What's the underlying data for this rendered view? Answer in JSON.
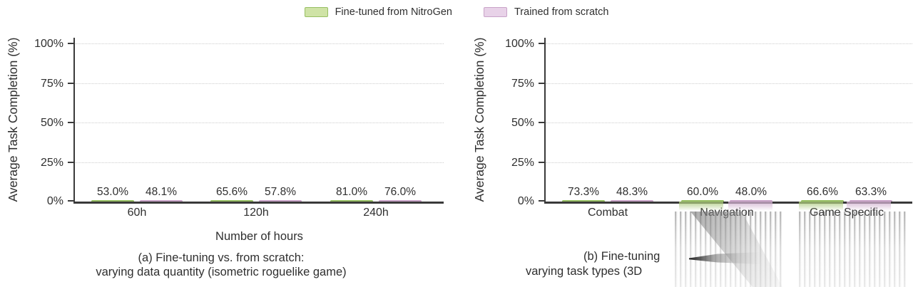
{
  "legend": {
    "items": [
      {
        "label": "Fine-tuned from NitroGen",
        "fill": "#cfe3a6",
        "border": "#97bf63"
      },
      {
        "label": "Trained from scratch",
        "fill": "#e8d2e8",
        "border": "#c9a3c8"
      }
    ]
  },
  "colors": {
    "green_fill": "#cfe3a6",
    "green_border": "#97bf63",
    "pink_fill": "#e8d2e8",
    "pink_border": "#c9a3c8",
    "axis": "#3a3a3a",
    "grid": "#cdcdcd",
    "text": "#2f2f2f"
  },
  "charts": [
    {
      "ylabel": "Average Task Completion (%)",
      "yticks": [
        "100%",
        "75%",
        "50%",
        "25%",
        "0%"
      ],
      "xlabel": "Number of hours",
      "caption": {
        "line1": "(a) Fine-tuning vs. from scratch:",
        "line2": "varying data quantity (isometric roguelike game)"
      },
      "groups": [
        {
          "category": "60h",
          "green": {
            "label": "53.0%",
            "value": 53.0
          },
          "pink": {
            "label": "48.1%",
            "value": 48.1
          }
        },
        {
          "category": "120h",
          "green": {
            "label": "65.6%",
            "value": 65.6
          },
          "pink": {
            "label": "57.8%",
            "value": 57.8
          }
        },
        {
          "category": "240h",
          "green": {
            "label": "81.0%",
            "value": 81.0
          },
          "pink": {
            "label": "76.0%",
            "value": 76.0
          }
        }
      ]
    },
    {
      "ylabel": "Average Task Completion (%)",
      "yticks": [
        "100%",
        "75%",
        "50%",
        "25%",
        "0%"
      ],
      "caption": {
        "line1": "(b) Fine-tuning",
        "line2": "varying task types (3D"
      },
      "groups": [
        {
          "category": "Combat",
          "green": {
            "label": "73.3%",
            "value": 73.3
          },
          "pink": {
            "label": "48.3%",
            "value": 48.3
          }
        },
        {
          "category": "Navigation",
          "green": {
            "label": "60.0%",
            "value": 60.0
          },
          "pink": {
            "label": "48.0%",
            "value": 48.0
          }
        },
        {
          "category": "Game Specific",
          "green": {
            "label": "66.6%",
            "value": 66.6
          },
          "pink": {
            "label": "63.3%",
            "value": 63.3
          }
        }
      ]
    }
  ],
  "chart_data": [
    {
      "type": "bar",
      "title": "(a) Fine-tuning vs. from scratch: varying data quantity (isometric roguelike game)",
      "xlabel": "Number of hours",
      "ylabel": "Average Task Completion (%)",
      "ylim": [
        0,
        100
      ],
      "ytick_values": [
        0,
        25,
        50,
        75,
        100
      ],
      "grid": "horizontal-dotted",
      "legend_position": "top-center",
      "categories": [
        "60h",
        "120h",
        "240h"
      ],
      "series": [
        {
          "name": "Fine-tuned from NitroGen",
          "color": "#cfe3a6",
          "values": [
            53.0,
            65.6,
            81.0
          ],
          "labels": [
            "53.0%",
            "65.6%",
            "81.0%"
          ]
        },
        {
          "name": "Trained from scratch",
          "color": "#e8d2e8",
          "values": [
            48.1,
            57.8,
            76.0
          ],
          "labels": [
            "48.1%",
            "57.8%",
            "76.0%"
          ]
        }
      ]
    },
    {
      "type": "bar",
      "title_visible_text": "(b) Fine-tuning … varying task types (3D …",
      "title_note": "caption partially obscured by smear artifact in screenshot",
      "xlabel": "",
      "ylabel": "Average Task Completion (%)",
      "ylim": [
        0,
        100
      ],
      "ytick_values": [
        0,
        25,
        50,
        75,
        100
      ],
      "grid": "horizontal-dotted",
      "legend_position": "top-center",
      "categories": [
        "Combat",
        "Navigation",
        "Game Specific"
      ],
      "series": [
        {
          "name": "Fine-tuned from NitroGen",
          "color": "#cfe3a6",
          "values": [
            73.3,
            60.0,
            66.6
          ],
          "labels": [
            "73.3%",
            "60.0%",
            "66.6%"
          ]
        },
        {
          "name": "Trained from scratch",
          "color": "#e8d2e8",
          "values": [
            48.3,
            48.0,
            63.3
          ],
          "labels": [
            "48.3%",
            "48.0%",
            "63.3%"
          ]
        }
      ]
    }
  ]
}
